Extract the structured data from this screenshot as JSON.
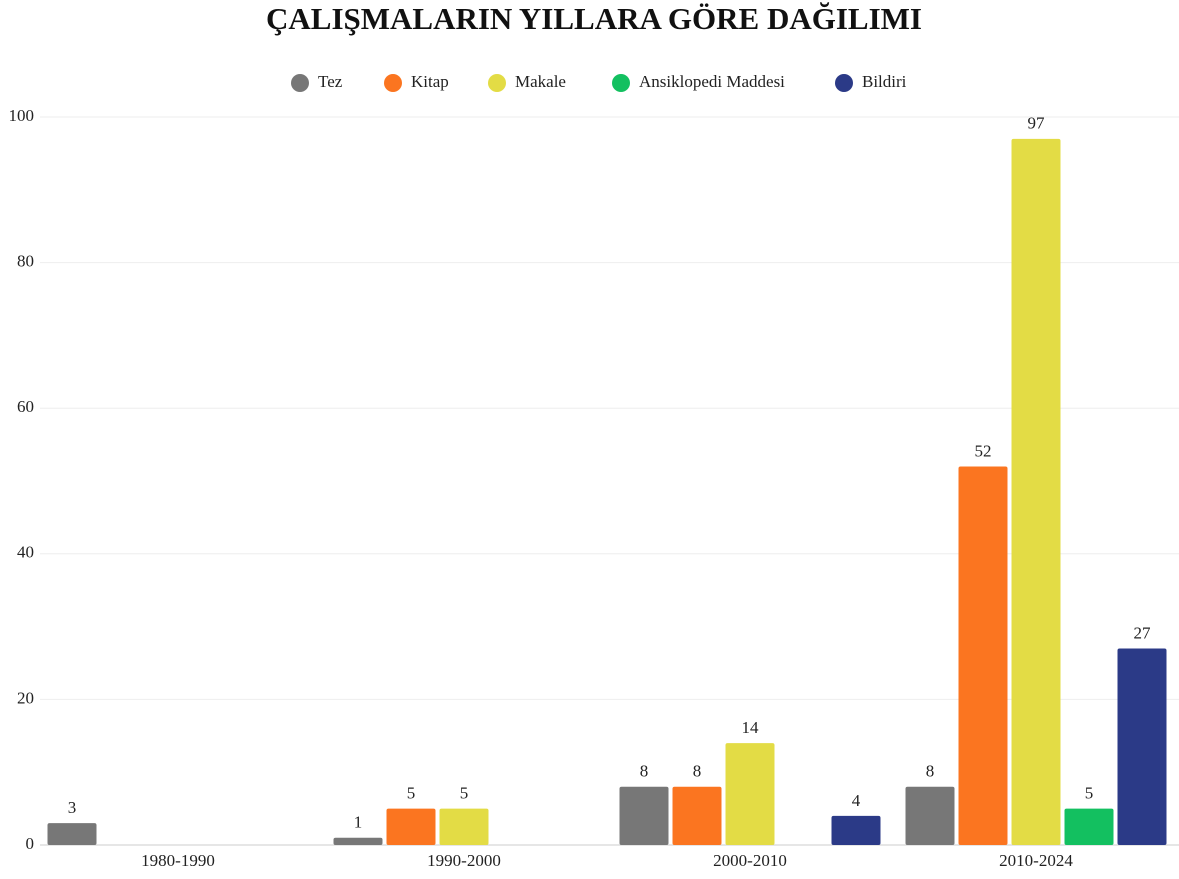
{
  "chart_data": {
    "type": "bar",
    "title": "ÇALIŞMALARIN YILLARA GÖRE DAĞILIMI",
    "categories": [
      "1980-1990",
      "1990-2000",
      "2000-2010",
      "2010-2024"
    ],
    "series": [
      {
        "name": "Tez",
        "color": "#777777",
        "values": [
          3,
          1,
          8,
          8
        ]
      },
      {
        "name": "Kitap",
        "color": "#fb7520",
        "values": [
          null,
          5,
          8,
          52
        ]
      },
      {
        "name": "Makale",
        "color": "#e3dc45",
        "values": [
          null,
          5,
          14,
          97
        ]
      },
      {
        "name": "Ansiklopedi Maddesi",
        "color": "#13c060",
        "values": [
          null,
          null,
          null,
          5
        ]
      },
      {
        "name": "Bildiri",
        "color": "#2b3a87",
        "values": [
          null,
          null,
          4,
          27
        ]
      }
    ],
    "ylim": [
      0,
      100
    ],
    "yticks": [
      0,
      20,
      40,
      60,
      80,
      100
    ],
    "grid": true,
    "legend": "top"
  }
}
